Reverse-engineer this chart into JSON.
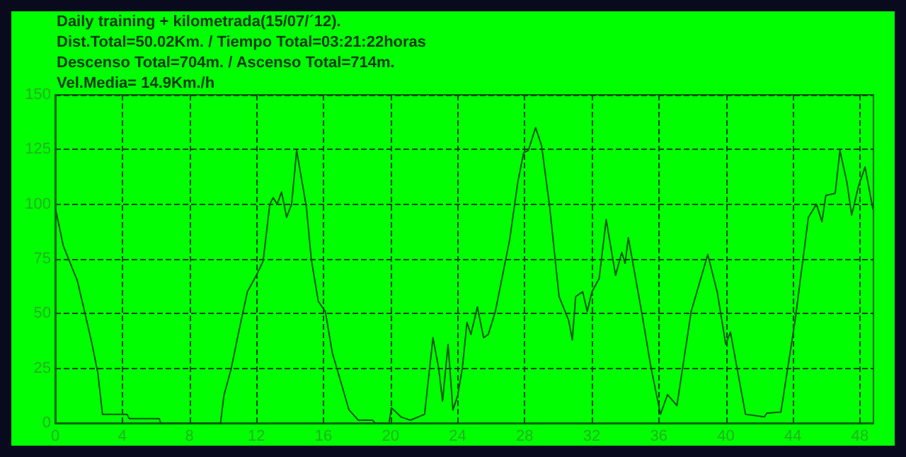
{
  "chart_data": {
    "type": "line",
    "title": "Daily training + kilometrada(15/07/´12).",
    "annotations": [
      "Dist.Total=50.02Km. / Tiempo Total=03:21:22horas",
      "Descenso Total=704m. / Ascenso Total=714m.",
      "Vel.Media= 14.9Km./h"
    ],
    "x": [
      0,
      0.48,
      0.9,
      1.32,
      1.75,
      2.17,
      2.54,
      2.82,
      4.28,
      4.42,
      6.2,
      6.3,
      9.86,
      10.06,
      10.5,
      10.9,
      11.46,
      12.03,
      12.4,
      12.8,
      13.0,
      13.24,
      13.5,
      13.8,
      14.1,
      14.4,
      14.98,
      15.27,
      15.69,
      16.11,
      16.53,
      16.95,
      17.52,
      18.08,
      18.93,
      19.07,
      19.91,
      20.05,
      20.62,
      21.18,
      22.03,
      22.53,
      22.87,
      23.1,
      23.43,
      23.72,
      24.0,
      24.28,
      24.56,
      24.79,
      25.18,
      25.55,
      25.83,
      26.25,
      26.59,
      27.1,
      27.6,
      27.94,
      28.22,
      28.65,
      29.01,
      29.49,
      30.05,
      30.62,
      30.84,
      31.04,
      31.46,
      31.73,
      32.01,
      32.44,
      32.86,
      33.42,
      33.79,
      33.99,
      34.18,
      34.97,
      35.54,
      36.1,
      36.52,
      37.08,
      37.93,
      38.92,
      39.48,
      39.99,
      40.27,
      41.17,
      42.3,
      42.44,
      43.28,
      44.13,
      44.92,
      45.4,
      45.73,
      45.96,
      46.52,
      46.8,
      47.23,
      47.5,
      47.9,
      48.3,
      48.77
    ],
    "series": [
      {
        "color": "#005500",
        "values": [
          98.7,
          81,
          73,
          65,
          51,
          37,
          23,
          4,
          4,
          2,
          2,
          0,
          0,
          12.5,
          25,
          40,
          60,
          68,
          74,
          100,
          103,
          100,
          105.6,
          94,
          100,
          124.6,
          98.7,
          75,
          55.6,
          51,
          32,
          21,
          6,
          1.3,
          1.3,
          0,
          0,
          7,
          2.8,
          1.3,
          4,
          39,
          25,
          10,
          36,
          6,
          12.5,
          25,
          46,
          40.5,
          53,
          39,
          40.5,
          51,
          64,
          83.6,
          110.6,
          123.5,
          124.6,
          135,
          126.7,
          98.7,
          57.8,
          47,
          38,
          57.8,
          60,
          51,
          60,
          66,
          93,
          67.5,
          78,
          73,
          84.7,
          51,
          25,
          4,
          13,
          8,
          51,
          77,
          60,
          36,
          41.6,
          4,
          2.8,
          4.5,
          5,
          47,
          94,
          100,
          92,
          104,
          105,
          124.6,
          109.5,
          95,
          108,
          117,
          97.6
        ]
      }
    ],
    "xlim": [
      0,
      48.8
    ],
    "xticks": [
      0,
      4,
      8,
      12,
      16,
      20,
      24,
      28,
      32,
      36,
      40,
      44,
      48
    ],
    "ylim": [
      0,
      150
    ],
    "yticks": [
      0,
      25,
      50,
      75,
      100,
      125,
      150
    ],
    "grid": true,
    "marker": "none",
    "line_style": "solid"
  }
}
